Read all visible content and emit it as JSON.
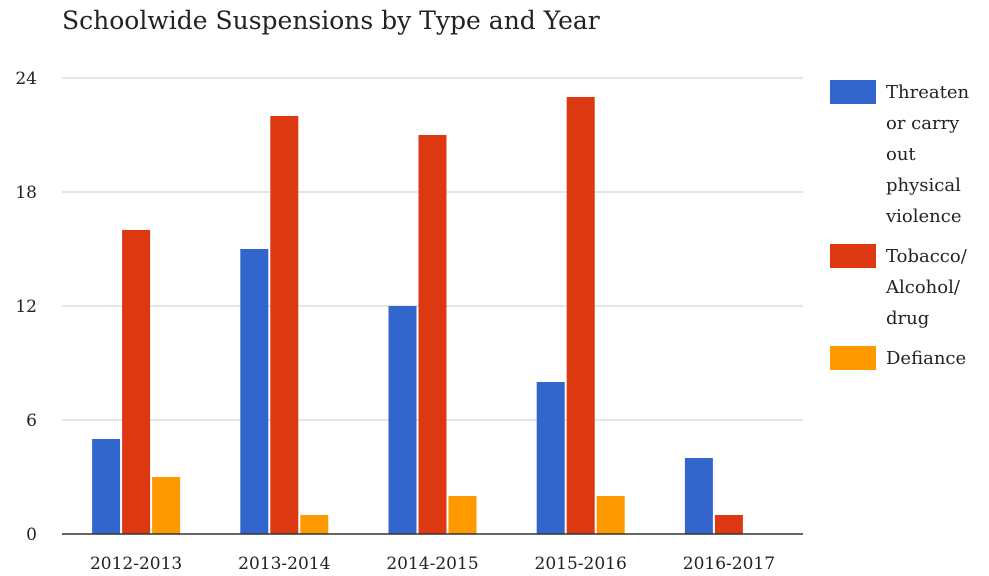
{
  "chart_data": {
    "type": "bar",
    "title": "Schoolwide Suspensions by Type and Year",
    "xlabel": "",
    "ylabel": "",
    "categories": [
      "2012-2013",
      "2013-2014",
      "2014-2015",
      "2015-2016",
      "2016-2017"
    ],
    "series": [
      {
        "name": "Threaten or carry out physical violence",
        "color": "#3366cc",
        "values": [
          5,
          15,
          12,
          8,
          4
        ]
      },
      {
        "name": "Tobacco/ Alcohol/ drug",
        "color": "#dc3912",
        "values": [
          16,
          22,
          21,
          23,
          1
        ]
      },
      {
        "name": "Defiance",
        "color": "#ff9900",
        "values": [
          3,
          1,
          2,
          2,
          0
        ]
      }
    ],
    "ylim": [
      0,
      24
    ],
    "yticks": [
      "0",
      "6",
      "12",
      "18",
      "24"
    ],
    "grid": true,
    "legend": "right"
  }
}
